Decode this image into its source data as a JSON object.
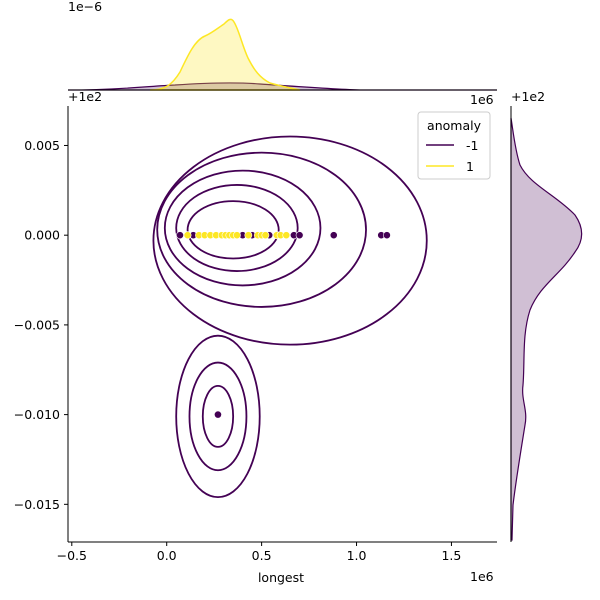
{
  "chart_data": {
    "type": "scatter",
    "xlabel": "longest",
    "ylabel": "",
    "x_offset_label": "1e6",
    "y_offset_label": "+1e2",
    "xlim": [
      -0.52,
      1.74
    ],
    "ylim": [
      -0.0171,
      0.0072
    ],
    "x_ticks": [
      {
        "value": -0.5,
        "label": "−0.5"
      },
      {
        "value": 0.0,
        "label": "0.0"
      },
      {
        "value": 0.5,
        "label": "0.5"
      },
      {
        "value": 1.0,
        "label": "1.0"
      },
      {
        "value": 1.5,
        "label": "1.5"
      }
    ],
    "y_ticks": [
      {
        "value": 0.005,
        "label": "0.005"
      },
      {
        "value": 0.0,
        "label": "0.000"
      },
      {
        "value": -0.005,
        "label": "−0.005"
      },
      {
        "value": -0.01,
        "label": "−0.010"
      },
      {
        "value": -0.015,
        "label": "−0.015"
      }
    ],
    "top_marginal": {
      "scale_label": "1e−6",
      "offset_label": "1e6",
      "type": "kde"
    },
    "right_marginal": {
      "offset_label": "+1e2",
      "type": "kde"
    },
    "legend": {
      "title": "anomaly",
      "placement": "top-right",
      "entries": [
        {
          "label": "-1",
          "color": "#440154"
        },
        {
          "label": "1",
          "color": "#fde725"
        }
      ]
    },
    "series": [
      {
        "name": "-1",
        "color": "#440154",
        "points": [
          {
            "x": 0.07,
            "y": 0.0
          },
          {
            "x": 0.14,
            "y": 0.0
          },
          {
            "x": 0.4,
            "y": 0.0
          },
          {
            "x": 0.45,
            "y": 0.0
          },
          {
            "x": 0.54,
            "y": 0.0
          },
          {
            "x": 0.67,
            "y": 0.0
          },
          {
            "x": 0.7,
            "y": 0.0
          },
          {
            "x": 0.88,
            "y": 0.0
          },
          {
            "x": 1.13,
            "y": 0.0
          },
          {
            "x": 1.16,
            "y": 0.0
          },
          {
            "x": 0.27,
            "y": -0.01
          }
        ]
      },
      {
        "name": "1",
        "color": "#fde725",
        "points": [
          {
            "x": 0.11,
            "y": 0.0
          },
          {
            "x": 0.17,
            "y": 0.0
          },
          {
            "x": 0.2,
            "y": 0.0
          },
          {
            "x": 0.23,
            "y": 0.0
          },
          {
            "x": 0.26,
            "y": 0.0
          },
          {
            "x": 0.29,
            "y": 0.0
          },
          {
            "x": 0.31,
            "y": 0.0
          },
          {
            "x": 0.33,
            "y": 0.0
          },
          {
            "x": 0.35,
            "y": 0.0
          },
          {
            "x": 0.37,
            "y": 0.0
          },
          {
            "x": 0.43,
            "y": 0.0
          },
          {
            "x": 0.48,
            "y": 0.0
          },
          {
            "x": 0.5,
            "y": 0.0
          },
          {
            "x": 0.52,
            "y": 0.0
          },
          {
            "x": 0.58,
            "y": 0.0
          },
          {
            "x": 0.6,
            "y": 0.0
          },
          {
            "x": 0.63,
            "y": 0.0
          }
        ]
      }
    ],
    "kde_contours": {
      "color": "#440154",
      "levels": [
        {
          "cx": 0.65,
          "cy": -0.0003,
          "rx": 0.72,
          "ry": 0.0058
        },
        {
          "cx": 0.5,
          "cy": 0.0003,
          "rx": 0.55,
          "ry": 0.0043
        },
        {
          "cx": 0.4,
          "cy": 0.0004,
          "rx": 0.41,
          "ry": 0.0032
        },
        {
          "cx": 0.37,
          "cy": 0.0004,
          "rx": 0.32,
          "ry": 0.0024
        },
        {
          "cx": 0.35,
          "cy": 0.0003,
          "rx": 0.24,
          "ry": 0.0016
        },
        {
          "cx": 0.27,
          "cy": -0.0101,
          "rx": 0.22,
          "ry": 0.0045
        },
        {
          "cx": 0.27,
          "cy": -0.0101,
          "rx": 0.15,
          "ry": 0.003
        },
        {
          "cx": 0.27,
          "cy": -0.0101,
          "rx": 0.08,
          "ry": 0.0017
        }
      ]
    }
  }
}
